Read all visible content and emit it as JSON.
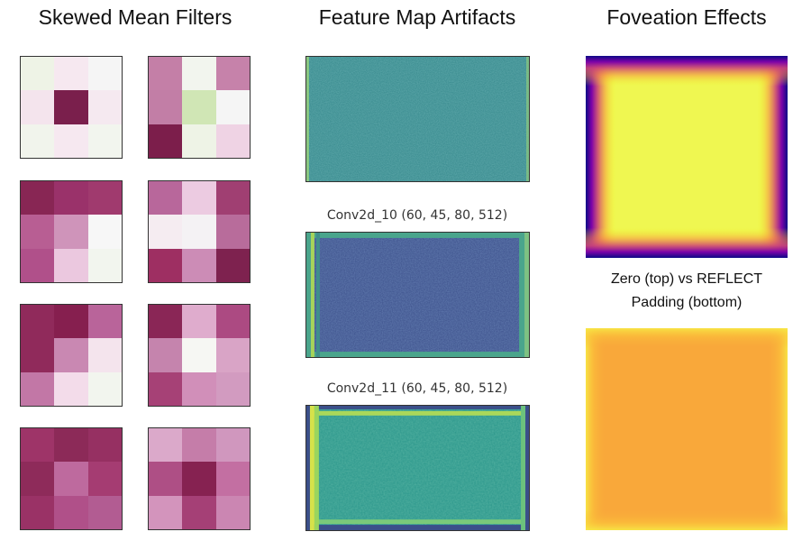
{
  "titles": {
    "col1": "Skewed Mean Filters",
    "col2": "Feature Map Artifacts",
    "col3": "Foveation Effects"
  },
  "filters": [
    {
      "cells": [
        "#eef3e6",
        "#f6e8f0",
        "#f5f5f5",
        "#f4e4ed",
        "#7a1f4c",
        "#f5e9f0",
        "#f1f4ec",
        "#f6e8f0",
        "#f2f5ee"
      ]
    },
    {
      "cells": [
        "#c47fa7",
        "#f2f5ee",
        "#c682aa",
        "#c27ea6",
        "#d0e6b5",
        "#f5f5f5",
        "#7c1e4b",
        "#eef3e6",
        "#efd3e4"
      ]
    },
    {
      "cells": [
        "#882654",
        "#9a326a",
        "#a03a6e",
        "#b85e93",
        "#cf94ba",
        "#f7f7f7",
        "#b0508a",
        "#ebc8df",
        "#f2f5ee"
      ]
    },
    {
      "cells": [
        "#b8679b",
        "#eccbe1",
        "#a03f72",
        "#f5ecf1",
        "#f4f2f4",
        "#b86c9b",
        "#9e2f62",
        "#cc8cb6",
        "#7e224f"
      ]
    },
    {
      "cells": [
        "#902a5b",
        "#861f4f",
        "#b9649a",
        "#902a5b",
        "#c988b2",
        "#f4e4ed",
        "#c277a6",
        "#f3dcea",
        "#f2f5ee"
      ]
    },
    {
      "cells": [
        "#8a2656",
        "#dfaccd",
        "#ac4a82",
        "#c584ad",
        "#f6f7f3",
        "#d9a4c6",
        "#a64176",
        "#d18fb9",
        "#d29bc0"
      ]
    },
    {
      "cells": [
        "#9e3468",
        "#8c2a58",
        "#963062",
        "#8e2b5a",
        "#be6a9e",
        "#a53c72",
        "#9a3266",
        "#b05089",
        "#b25c92"
      ]
    },
    {
      "cells": [
        "#dba9ca",
        "#c57da9",
        "#d097be",
        "#ae4f85",
        "#862251",
        "#c36fa2",
        "#d394bc",
        "#a54076",
        "#cb86b2"
      ]
    }
  ],
  "feature_maps": [
    {
      "label": "",
      "base": "#35888c"
    },
    {
      "label": "Conv2d_10 (60, 45, 80, 512)",
      "base": "#3b4f8a"
    },
    {
      "label": "Conv2d_11 (60, 45, 80, 512)",
      "base": "#2a968b"
    }
  ],
  "foveation": {
    "caption_line1": "Zero (top) vs REFLECT",
    "caption_line2": "Padding (bottom)"
  }
}
